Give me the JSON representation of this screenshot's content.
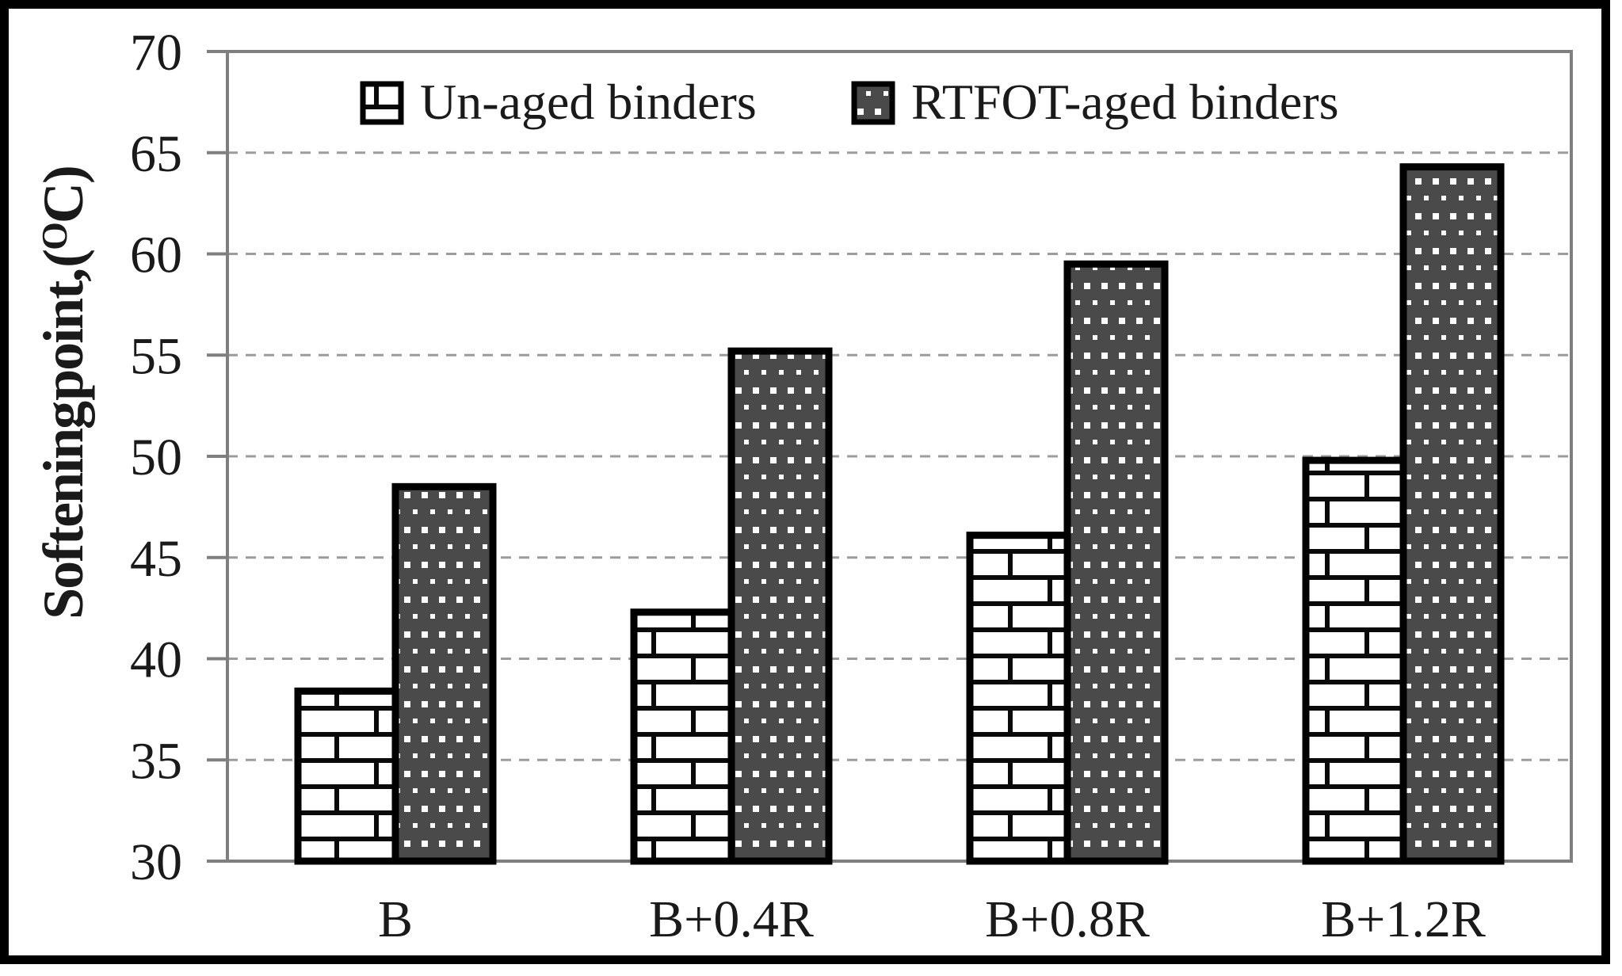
{
  "chart_data": {
    "type": "bar",
    "title": "",
    "xlabel": "",
    "ylabel": "Softening point, (°C)",
    "ylabel_display": {
      "prefix": "Softening point, (",
      "superscript": "O",
      "suffix": "C)"
    },
    "categories": [
      "B",
      "B+0.4R",
      "B+0.8R",
      "B+1.2R"
    ],
    "series": [
      {
        "name": "Un-aged binders",
        "pattern": "brick",
        "values": [
          38.4,
          42.3,
          46.1,
          49.8
        ]
      },
      {
        "name": "RTFOT-aged binders",
        "pattern": "dots",
        "values": [
          48.5,
          55.2,
          59.5,
          64.3
        ]
      }
    ],
    "ylim": [
      30,
      70
    ],
    "ytick_step": 5,
    "yticks": [
      30,
      35,
      40,
      45,
      50,
      55,
      60,
      65,
      70
    ],
    "grid": {
      "horizontal": true,
      "style": "dashed",
      "on": true
    },
    "legend": {
      "position": "top-center-inside",
      "entries": [
        "Un-aged binders",
        "RTFOT-aged binders"
      ]
    }
  },
  "style": {
    "background": "#ffffff",
    "frame_color": "#000000",
    "axis_color": "#7f7f7f",
    "grid_color": "#9c9c9c",
    "text_color": "#1a1a1a",
    "bar_border_color": "#000000",
    "unaged_fill": "#ffffff",
    "unaged_line_color": "#0a0a0a",
    "rtfot_fill": "#4a4a4a",
    "rtfot_dot_color": "#ffffff"
  }
}
